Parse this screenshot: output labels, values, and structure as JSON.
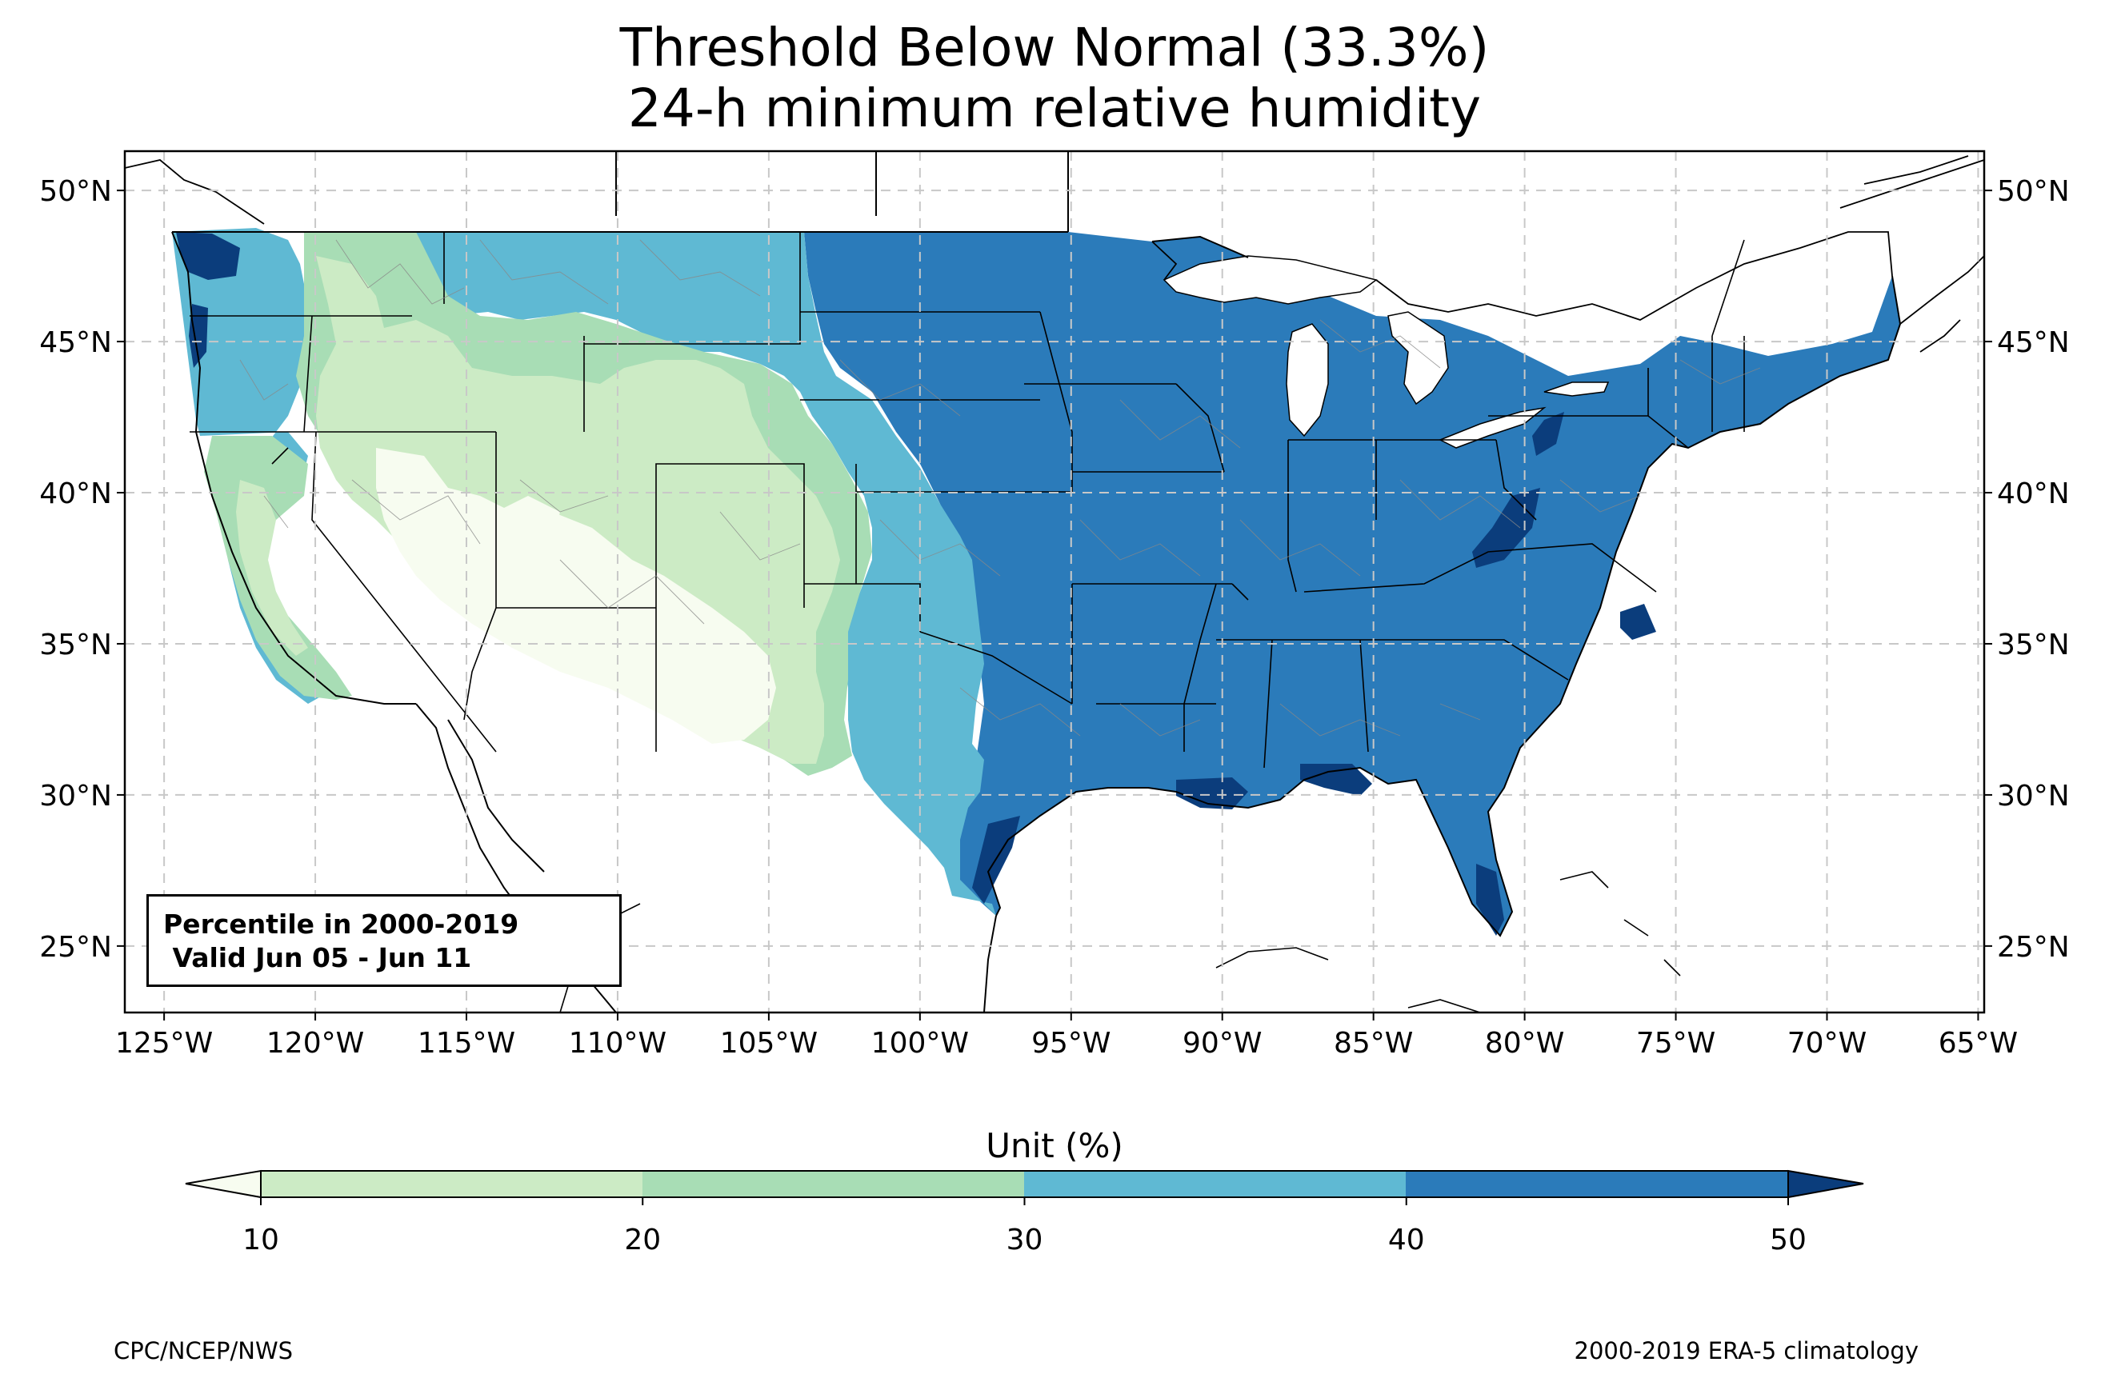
{
  "title": {
    "line1": "Threshold Below Normal (33.3%)",
    "line2": "24-h minimum relative humidity"
  },
  "axes": {
    "lon_ticks": [
      "125°W",
      "120°W",
      "115°W",
      "110°W",
      "105°W",
      "100°W",
      "95°W",
      "90°W",
      "85°W",
      "80°W",
      "75°W",
      "70°W",
      "65°W"
    ],
    "lat_ticks": [
      "50°N",
      "45°N",
      "40°N",
      "35°N",
      "30°N",
      "25°N"
    ],
    "lon_range": [
      -126.3,
      -64.8
    ],
    "lat_range": [
      22.8,
      51.3
    ],
    "grid": true
  },
  "annotation": {
    "line1": "Percentile in 2000-2019",
    "line2": " Valid Jun 05 - Jun 11"
  },
  "colorbar": {
    "label": "Unit (%)",
    "ticks": [
      "10",
      "20",
      "30",
      "40",
      "50"
    ],
    "bins": [
      {
        "range": "<10",
        "color": "#f7fcf0"
      },
      {
        "range": "10-20",
        "color": "#ccebc5"
      },
      {
        "range": "20-30",
        "color": "#a8ddb5"
      },
      {
        "range": "30-40",
        "color": "#5fb9d3"
      },
      {
        "range": "40-50",
        "color": "#2b7bba"
      },
      {
        "range": ">50",
        "color": "#0b3d7c"
      }
    ]
  },
  "credits": {
    "left": "CPC/NCEP/NWS",
    "right": "2000-2019 ERA-5 climatology"
  }
}
